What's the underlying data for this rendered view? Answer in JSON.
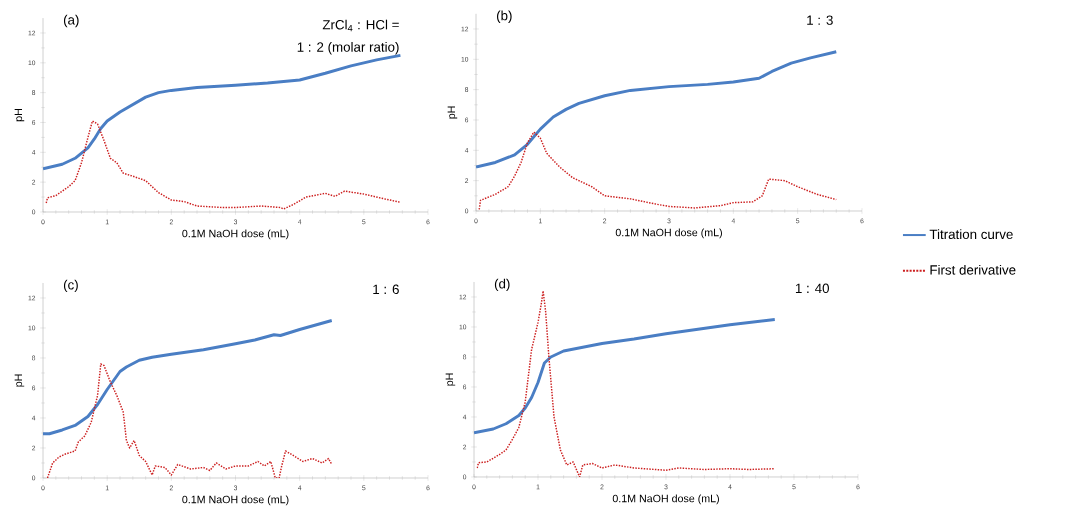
{
  "chart_data": [
    {
      "type": "line",
      "title": "(a)",
      "xlabel": "0.1M NaOH dose (mL)",
      "ylabel": "pH",
      "annotations": [
        "ZrCl$_{4}$ : HCl =",
        "1 : 2 (molar ratio)"
      ],
      "xlim": [
        0,
        6
      ],
      "ylim": [
        0,
        13
      ],
      "xticks": [
        0,
        1,
        2,
        3,
        4,
        5,
        6
      ],
      "yticks": [
        0,
        2,
        4,
        6,
        8,
        10,
        12
      ],
      "legend": "right",
      "series": [
        {
          "name": "Titration curve",
          "color": "#4a7ec4",
          "line_style": "solid",
          "x": [
            0,
            0.3,
            0.5,
            0.7,
            0.8,
            0.9,
            1.0,
            1.2,
            1.4,
            1.6,
            1.8,
            2.0,
            2.4,
            3.0,
            3.5,
            4.0,
            4.4,
            4.8,
            5.2,
            5.57
          ],
          "values": [
            2.9,
            3.2,
            3.6,
            4.3,
            4.9,
            5.6,
            6.1,
            6.7,
            7.2,
            7.7,
            8.0,
            8.15,
            8.35,
            8.5,
            8.65,
            8.85,
            9.3,
            9.8,
            10.2,
            10.5
          ]
        },
        {
          "name": "First derivative",
          "color": "#cc1f1f",
          "line_style": "dotted",
          "x": [
            0.05,
            0.07,
            0.2,
            0.4,
            0.5,
            0.6,
            0.7,
            0.77,
            0.85,
            0.95,
            1.05,
            1.15,
            1.25,
            1.4,
            1.6,
            1.8,
            2.0,
            2.2,
            2.4,
            2.8,
            3.0,
            3.4,
            3.7,
            3.75,
            3.9,
            4.1,
            4.4,
            4.55,
            4.7,
            5.0,
            5.3,
            5.57
          ],
          "values": [
            0.6,
            0.95,
            1.1,
            1.7,
            2.1,
            3.3,
            5.0,
            6.1,
            5.9,
            4.8,
            3.6,
            3.3,
            2.6,
            2.4,
            2.1,
            1.3,
            0.8,
            0.7,
            0.4,
            0.3,
            0.3,
            0.4,
            0.3,
            0.2,
            0.5,
            1.0,
            1.25,
            1.05,
            1.4,
            1.2,
            0.9,
            0.65
          ]
        }
      ]
    },
    {
      "type": "line",
      "title": "(b)",
      "xlabel": "0.1M NaOH dose (mL)",
      "ylabel": "pH",
      "annotations": [
        "1 : 3"
      ],
      "xlim": [
        0,
        6
      ],
      "ylim": [
        0,
        13
      ],
      "xticks": [
        0,
        1,
        2,
        3,
        4,
        5,
        6
      ],
      "yticks": [
        0,
        2,
        4,
        6,
        8,
        10,
        12
      ],
      "series": [
        {
          "color": "#4a7ec4",
          "line_style": "solid",
          "x": [
            0,
            0.3,
            0.6,
            0.8,
            1.0,
            1.2,
            1.4,
            1.6,
            2.0,
            2.4,
            3.0,
            3.6,
            4.0,
            4.4,
            4.6,
            4.9,
            5.2,
            5.6
          ],
          "values": [
            2.9,
            3.2,
            3.7,
            4.4,
            5.4,
            6.2,
            6.7,
            7.1,
            7.6,
            7.95,
            8.2,
            8.35,
            8.5,
            8.75,
            9.2,
            9.75,
            10.1,
            10.5
          ]
        },
        {
          "color": "#cc1f1f",
          "line_style": "dotted",
          "x": [
            0.05,
            0.07,
            0.3,
            0.5,
            0.6,
            0.7,
            0.8,
            0.9,
            1.0,
            1.1,
            1.3,
            1.5,
            1.8,
            2.0,
            2.4,
            2.8,
            3.0,
            3.4,
            3.8,
            4.0,
            4.3,
            4.45,
            4.55,
            4.8,
            5.0,
            5.3,
            5.6
          ],
          "values": [
            0.1,
            0.7,
            1.1,
            1.6,
            2.3,
            3.2,
            4.5,
            5.2,
            4.8,
            3.8,
            2.9,
            2.2,
            1.6,
            1.0,
            0.8,
            0.45,
            0.3,
            0.2,
            0.35,
            0.55,
            0.6,
            1.0,
            2.1,
            2.0,
            1.6,
            1.1,
            0.75
          ]
        }
      ]
    },
    {
      "type": "line",
      "title": "(c)",
      "xlabel": "0.1M NaOH dose (mL)",
      "ylabel": "pH",
      "annotations": [
        "1 : 6"
      ],
      "xlim": [
        0,
        6
      ],
      "ylim": [
        0,
        13
      ],
      "xticks": [
        0,
        1,
        2,
        3,
        4,
        5,
        6
      ],
      "yticks": [
        0,
        2,
        4,
        6,
        8,
        10,
        12
      ],
      "series": [
        {
          "color": "#4a7ec4",
          "line_style": "solid",
          "x": [
            0,
            0.1,
            0.3,
            0.5,
            0.7,
            0.85,
            1.0,
            1.1,
            1.2,
            1.3,
            1.5,
            1.7,
            2.0,
            2.5,
            3.0,
            3.3,
            3.6,
            3.7,
            4.0,
            4.5
          ],
          "values": [
            2.95,
            2.95,
            3.2,
            3.5,
            4.1,
            4.9,
            5.9,
            6.5,
            7.1,
            7.4,
            7.85,
            8.05,
            8.25,
            8.55,
            8.95,
            9.2,
            9.55,
            9.5,
            9.9,
            10.5
          ]
        },
        {
          "color": "#cc1f1f",
          "line_style": "dotted",
          "x": [
            0.07,
            0.15,
            0.25,
            0.35,
            0.5,
            0.55,
            0.65,
            0.75,
            0.85,
            0.9,
            0.95,
            1.05,
            1.15,
            1.25,
            1.3,
            1.35,
            1.42,
            1.5,
            1.6,
            1.7,
            1.75,
            1.9,
            2.0,
            2.1,
            2.3,
            2.5,
            2.6,
            2.7,
            2.85,
            3.0,
            3.2,
            3.35,
            3.45,
            3.55,
            3.62,
            3.68,
            3.72,
            3.78,
            3.9,
            4.05,
            4.2,
            4.35,
            4.45,
            4.5
          ],
          "values": [
            0.0,
            1.0,
            1.4,
            1.6,
            1.8,
            2.4,
            2.8,
            3.7,
            5.5,
            7.6,
            7.5,
            6.4,
            5.5,
            4.4,
            2.5,
            2.0,
            2.5,
            1.5,
            1.1,
            0.2,
            0.8,
            0.7,
            0.2,
            0.9,
            0.6,
            0.7,
            0.5,
            1.0,
            0.6,
            0.8,
            0.8,
            1.1,
            0.8,
            1.1,
            0.0,
            0.0,
            0.8,
            1.8,
            1.5,
            1.1,
            1.3,
            1.0,
            1.3,
            0.9
          ]
        }
      ]
    },
    {
      "type": "line",
      "title": "(d)",
      "xlabel": "0.1M NaOH dose (mL)",
      "ylabel": "pH",
      "annotations": [
        "1 : 40"
      ],
      "xlim": [
        0,
        6
      ],
      "ylim": [
        0,
        13
      ],
      "xticks": [
        0,
        1,
        2,
        3,
        4,
        5,
        6
      ],
      "yticks": [
        0,
        2,
        4,
        6,
        8,
        10,
        12
      ],
      "series": [
        {
          "color": "#4a7ec4",
          "line_style": "solid",
          "x": [
            0,
            0.3,
            0.5,
            0.7,
            0.8,
            0.9,
            1.0,
            1.1,
            1.2,
            1.4,
            1.7,
            2.0,
            2.5,
            3.0,
            3.5,
            4.0,
            4.7
          ],
          "values": [
            2.95,
            3.2,
            3.55,
            4.1,
            4.6,
            5.3,
            6.3,
            7.6,
            8.0,
            8.4,
            8.65,
            8.9,
            9.2,
            9.55,
            9.85,
            10.15,
            10.5
          ]
        },
        {
          "color": "#cc1f1f",
          "line_style": "dotted",
          "x": [
            0.05,
            0.07,
            0.2,
            0.4,
            0.5,
            0.6,
            0.7,
            0.8,
            0.9,
            1.0,
            1.05,
            1.08,
            1.12,
            1.17,
            1.25,
            1.35,
            1.45,
            1.55,
            1.65,
            1.7,
            1.85,
            2.0,
            2.2,
            2.5,
            3.0,
            3.2,
            3.6,
            4.0,
            4.3,
            4.7
          ],
          "values": [
            0.6,
            0.95,
            1.0,
            1.5,
            1.8,
            2.5,
            3.3,
            5.0,
            8.5,
            10.3,
            11.5,
            12.4,
            11.0,
            8.0,
            4.0,
            1.8,
            0.8,
            1.0,
            0.0,
            0.8,
            0.9,
            0.6,
            0.8,
            0.6,
            0.45,
            0.6,
            0.5,
            0.55,
            0.5,
            0.55
          ]
        }
      ]
    }
  ]
}
